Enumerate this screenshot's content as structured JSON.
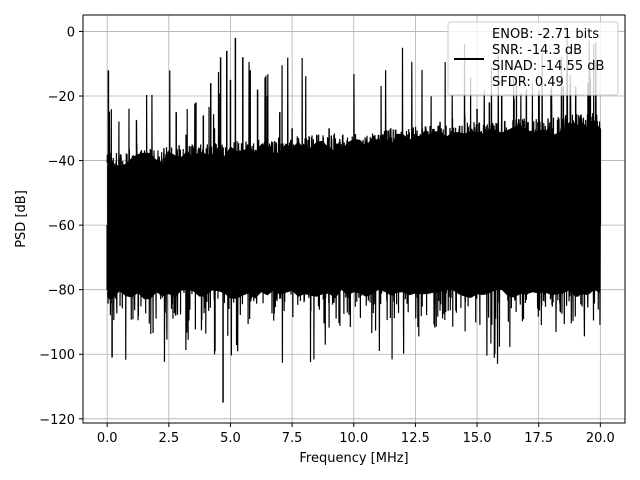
{
  "chart_data": {
    "type": "line",
    "title": "",
    "xlabel": "Frequency [MHz]",
    "ylabel": "PSD [dB]",
    "xlim": [
      -0.98,
      21.0
    ],
    "ylim": [
      -121.3,
      5.1
    ],
    "xticks": [
      0.0,
      2.5,
      5.0,
      7.5,
      10.0,
      12.5,
      15.0,
      17.5,
      20.0
    ],
    "xtick_labels": [
      "0.0",
      "2.5",
      "5.0",
      "7.5",
      "10.0",
      "12.5",
      "15.0",
      "17.5",
      "20.0"
    ],
    "yticks": [
      0,
      -20,
      -40,
      -60,
      -80,
      -100,
      -120
    ],
    "ytick_labels": [
      "0",
      "−20",
      "−40",
      "−60",
      "−80",
      "−100",
      "−120"
    ],
    "grid": true,
    "line_color": "#000000",
    "legend_position": "top-right",
    "legend_entries": [
      "ENOB: -2.71 bits",
      "SNR: -14.3 dB",
      "SINAD: -14.55 dB",
      "SFDR: 0.49"
    ],
    "series": [
      {
        "x": [
          0.0,
          0.05,
          0.1,
          0.15,
          0.2,
          0.3,
          0.5,
          0.8,
          1.2,
          1.6,
          2.0,
          2.4,
          2.8,
          3.2,
          3.6,
          3.9,
          4.2,
          4.35,
          4.6,
          4.7,
          4.85,
          5.0,
          5.2,
          5.5,
          5.8,
          6.1,
          6.5,
          7.0,
          7.5,
          8.0,
          8.5,
          9.0,
          9.5,
          10.0,
          10.5,
          11.0,
          11.5,
          12.0,
          12.5,
          13.0,
          13.5,
          14.0,
          14.5,
          15.0,
          15.5,
          16.0,
          16.5,
          17.0,
          17.5,
          18.0,
          18.5,
          19.0,
          19.5,
          20.0
        ],
        "y": [
          -80,
          -12,
          -83,
          -45,
          -101,
          -50,
          -40,
          -38,
          -35,
          -42,
          -40,
          -38,
          -25,
          -32,
          -22,
          -26,
          -16,
          -30,
          -8,
          -115,
          -6,
          -15,
          -2,
          -8,
          -12,
          -18,
          -20,
          -25,
          -30,
          -35,
          -32,
          -30,
          -38,
          -36,
          -34,
          -32,
          -30,
          -34,
          -33,
          -31,
          -28,
          -27,
          -26,
          -24,
          -22,
          -20,
          -21,
          -18,
          -19,
          -18,
          -17,
          -17,
          -16,
          -30
        ]
      }
    ]
  }
}
